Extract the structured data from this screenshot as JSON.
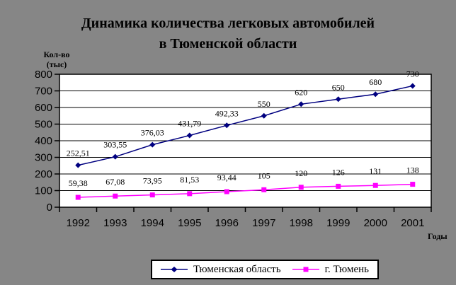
{
  "chart_data": {
    "type": "line",
    "title": {
      "line1": "Динамика количества легковых автомобилей",
      "line2": "в Тюменской области"
    },
    "y_axis_label": {
      "line1": "Кол-во",
      "line2": "(тыс)"
    },
    "x_axis_label": "Годы",
    "categories": [
      "1992",
      "1993",
      "1994",
      "1995",
      "1996",
      "1997",
      "1998",
      "1999",
      "2000",
      "2001"
    ],
    "ylim": [
      0,
      800
    ],
    "y_ticks": [
      0,
      100,
      200,
      300,
      400,
      500,
      600,
      700,
      800
    ],
    "grid": true,
    "legend_position": "bottom",
    "background_color": "#868686",
    "plot_background": "#FFFFFF",
    "axis_color": "#000000",
    "series": [
      {
        "name": "Тюменская область",
        "color": "#000080",
        "marker": "diamond",
        "values": [
          252.51,
          303.55,
          376.03,
          431.79,
          492.33,
          550,
          620,
          650,
          680,
          730
        ],
        "labels": [
          "252,51",
          "303,55",
          "376,03",
          "431,79",
          "492,33",
          "550",
          "620",
          "650",
          "680",
          "730"
        ]
      },
      {
        "name": "г. Тюмень",
        "color": "#FF00FF",
        "marker": "square",
        "values": [
          59.38,
          67.08,
          73.95,
          81.53,
          93.44,
          105,
          120,
          126,
          131,
          138
        ],
        "labels": [
          "59,38",
          "67,08",
          "73,95",
          "81,53",
          "93,44",
          "105",
          "120",
          "126",
          "131",
          "138"
        ]
      }
    ]
  }
}
